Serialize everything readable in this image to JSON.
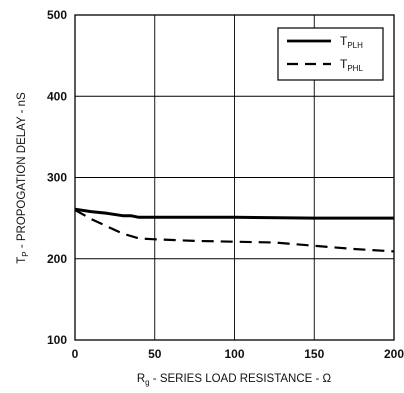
{
  "chart_data": {
    "type": "line",
    "xlabel": "R",
    "xlabel_sub": "g",
    "xlabel_rest": " - SERIES LOAD RESISTANCE - Ω",
    "ylabel": "T",
    "ylabel_sub": "P",
    "ylabel_rest": " - PROPOGATION DELAY - nS",
    "xlim": [
      0,
      200
    ],
    "ylim": [
      100,
      500
    ],
    "x_ticks": [
      "0",
      "50",
      "100",
      "150",
      "200"
    ],
    "y_ticks": [
      "100",
      "200",
      "300",
      "400",
      "500"
    ],
    "grid": true,
    "legend_position": "top-right",
    "series": [
      {
        "name": "T",
        "name_sub": "PLH",
        "style": "solid",
        "x": [
          0,
          10,
          20,
          30,
          35,
          40,
          50,
          100,
          150,
          200
        ],
        "y": [
          261,
          258,
          256,
          253,
          253,
          251,
          251,
          251,
          250,
          250
        ]
      },
      {
        "name": "T",
        "name_sub": "PHL",
        "style": "dashed",
        "x": [
          0,
          10,
          20,
          30,
          40,
          50,
          75,
          100,
          125,
          150,
          175,
          200
        ],
        "y": [
          260,
          249,
          240,
          231,
          225,
          224,
          222,
          221,
          220,
          216,
          212,
          209
        ]
      }
    ]
  }
}
